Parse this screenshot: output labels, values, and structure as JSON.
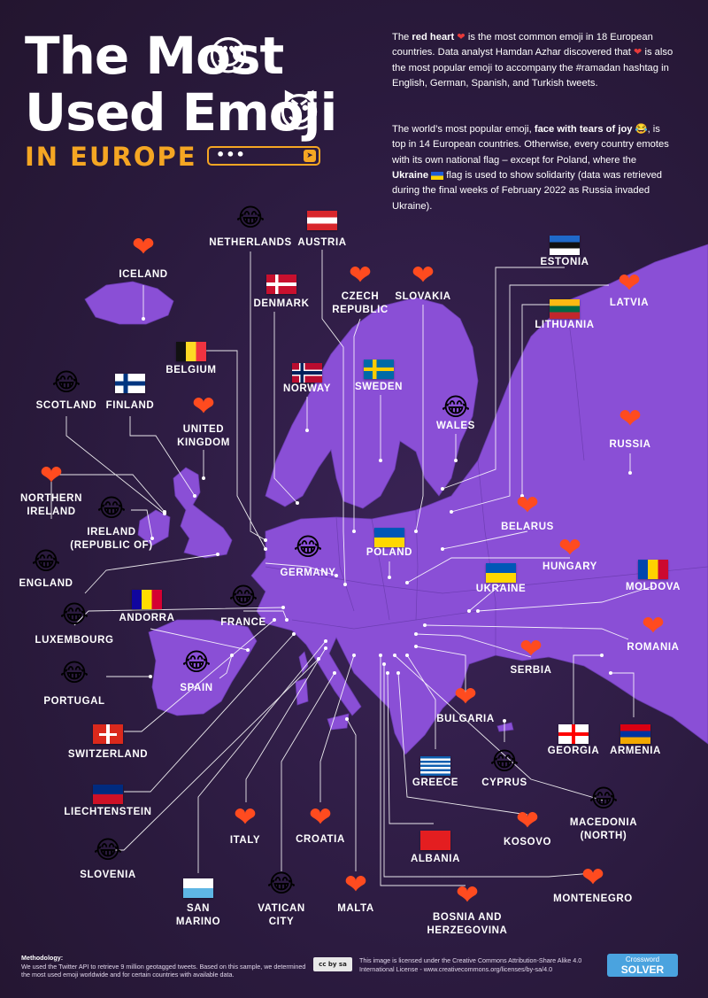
{
  "title": {
    "line1": "The Most",
    "line2": "Used Emoji",
    "line3": "IN EUROPE",
    "search_dots": "•••",
    "send_icon": "➤"
  },
  "intro": {
    "p1_parts": [
      "The ",
      "red heart",
      " is the most common emoji in 18 European countries. Data analyst Hamdan Azhar discovered that ",
      " is also the most popular emoji to accompany the #ramadan hashtag in English, German, Spanish, and Turkish tweets."
    ],
    "p2_parts": [
      "The world’s most popular emoji, ",
      "face with tears of joy",
      ", is top in 14 European countries. Otherwise, every country emotes with its own national flag – except for Poland, where the ",
      "Ukraine",
      " flag is used to show solidarity (data was retrieved during the final weeks of February 2022 as Russia invaded Ukraine)."
    ]
  },
  "icons": {
    "heart": "❤",
    "joy": "😂",
    "heart_eyes": "😍",
    "devil": "😈"
  },
  "colors": {
    "background": "#2a1a3d",
    "land": "#8a4fd6",
    "heart": "#ff4b1f",
    "accent": "#f5a623"
  },
  "countries": [
    {
      "name": "ICELAND",
      "emoji": "heart"
    },
    {
      "name": "NETHERLANDS",
      "emoji": "joy"
    },
    {
      "name": "AUSTRIA",
      "emoji": "flag-austria"
    },
    {
      "name": "ESTONIA",
      "emoji": "flag-estonia"
    },
    {
      "name": "DENMARK",
      "emoji": "flag-denmark"
    },
    {
      "name": "CZECH\nREPUBLIC",
      "emoji": "heart"
    },
    {
      "name": "SLOVAKIA",
      "emoji": "heart"
    },
    {
      "name": "LATVIA",
      "emoji": "heart"
    },
    {
      "name": "LITHUANIA",
      "emoji": "flag-lithuania"
    },
    {
      "name": "BELGIUM",
      "emoji": "flag-belgium"
    },
    {
      "name": "NORWAY",
      "emoji": "flag-norway"
    },
    {
      "name": "SWEDEN",
      "emoji": "flag-sweden"
    },
    {
      "name": "WALES",
      "emoji": "joy"
    },
    {
      "name": "SCOTLAND",
      "emoji": "joy"
    },
    {
      "name": "FINLAND",
      "emoji": "flag-finland"
    },
    {
      "name": "UNITED\nKINGDOM",
      "emoji": "heart"
    },
    {
      "name": "RUSSIA",
      "emoji": "heart"
    },
    {
      "name": "NORTHERN\nIRELAND",
      "emoji": "heart"
    },
    {
      "name": "IRELAND\n(REPUBLIC OF)",
      "emoji": "joy"
    },
    {
      "name": "BELARUS",
      "emoji": "heart"
    },
    {
      "name": "GERMANY",
      "emoji": "joy"
    },
    {
      "name": "POLAND",
      "emoji": "flag-ukraine"
    },
    {
      "name": "HUNGARY",
      "emoji": "heart"
    },
    {
      "name": "ENGLAND",
      "emoji": "joy"
    },
    {
      "name": "UKRAINE",
      "emoji": "flag-ukraine"
    },
    {
      "name": "MOLDOVA",
      "emoji": "flag-moldova"
    },
    {
      "name": "ANDORRA",
      "emoji": "flag-andorra"
    },
    {
      "name": "FRANCE",
      "emoji": "joy"
    },
    {
      "name": "LUXEMBOURG",
      "emoji": "joy"
    },
    {
      "name": "ROMANIA",
      "emoji": "heart"
    },
    {
      "name": "SPAIN",
      "emoji": "joy"
    },
    {
      "name": "SERBIA",
      "emoji": "heart"
    },
    {
      "name": "PORTUGAL",
      "emoji": "joy"
    },
    {
      "name": "BULGARIA",
      "emoji": "heart"
    },
    {
      "name": "SWITZERLAND",
      "emoji": "flag-switzerland"
    },
    {
      "name": "GEORGIA",
      "emoji": "flag-georgia"
    },
    {
      "name": "ARMENIA",
      "emoji": "flag-armenia"
    },
    {
      "name": "GREECE",
      "emoji": "flag-greece"
    },
    {
      "name": "CYPRUS",
      "emoji": "joy"
    },
    {
      "name": "LIECHTENSTEIN",
      "emoji": "flag-liechtenstein"
    },
    {
      "name": "ITALY",
      "emoji": "heart"
    },
    {
      "name": "CROATIA",
      "emoji": "heart"
    },
    {
      "name": "MACEDONIA\n(NORTH)",
      "emoji": "joy"
    },
    {
      "name": "KOSOVO",
      "emoji": "heart"
    },
    {
      "name": "ALBANIA",
      "emoji": "flag-albania"
    },
    {
      "name": "SLOVENIA",
      "emoji": "joy"
    },
    {
      "name": "SAN\nMARINO",
      "emoji": "flag-sanmarino"
    },
    {
      "name": "VATICAN\nCITY",
      "emoji": "joy"
    },
    {
      "name": "MALTA",
      "emoji": "heart"
    },
    {
      "name": "BOSNIA AND\nHERZEGOVINA",
      "emoji": "heart"
    },
    {
      "name": "MONTENEGRO",
      "emoji": "heart"
    }
  ],
  "footer": {
    "methodology_title": "Methodology:",
    "methodology_text": "We used the Twitter API to retrieve 9 million geotagged tweets. Based on this sample, we determined the most used emoji worldwide and for certain countries with available data.",
    "cc_badge": "cc by sa",
    "license": "This image is licensed under the Creative Commons Attribution-Share Alike 4.0 International License - www.creativecommons.org/licenses/by-sa/4.0",
    "logo_line1": "Crossword",
    "logo_line2": "SOLVER"
  }
}
